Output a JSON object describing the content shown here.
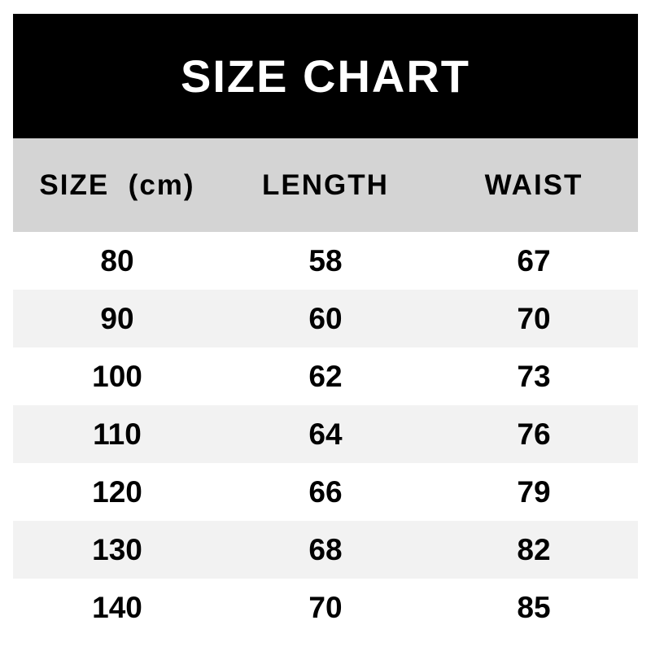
{
  "title": "SIZE CHART",
  "table": {
    "headers": [
      "SIZE  (cm)",
      "LENGTH",
      "WAIST"
    ],
    "rows": [
      [
        "80",
        "58",
        "67"
      ],
      [
        "90",
        "60",
        "70"
      ],
      [
        "100",
        "62",
        "73"
      ],
      [
        "110",
        "64",
        "76"
      ],
      [
        "120",
        "66",
        "79"
      ],
      [
        "130",
        "68",
        "82"
      ],
      [
        "140",
        "70",
        "85"
      ]
    ]
  },
  "colors": {
    "banner_bg": "#000000",
    "banner_text": "#ffffff",
    "header_bg": "#d4d4d4",
    "stripe_bg": "#f2f2f2",
    "row_bg": "#ffffff",
    "text": "#000000",
    "page_bg": "#ffffff"
  },
  "chart_data": {
    "type": "table",
    "title": "SIZE CHART",
    "columns": [
      "SIZE (cm)",
      "LENGTH",
      "WAIST"
    ],
    "rows": [
      [
        80,
        58,
        67
      ],
      [
        90,
        60,
        70
      ],
      [
        100,
        62,
        73
      ],
      [
        110,
        64,
        76
      ],
      [
        120,
        66,
        79
      ],
      [
        130,
        68,
        82
      ],
      [
        140,
        70,
        85
      ]
    ],
    "layout": {
      "header_style": "gray-band",
      "title_style": "black-banner",
      "row_striping": "alternate-light-gray-starting-white",
      "cell_alignment": "center"
    }
  }
}
